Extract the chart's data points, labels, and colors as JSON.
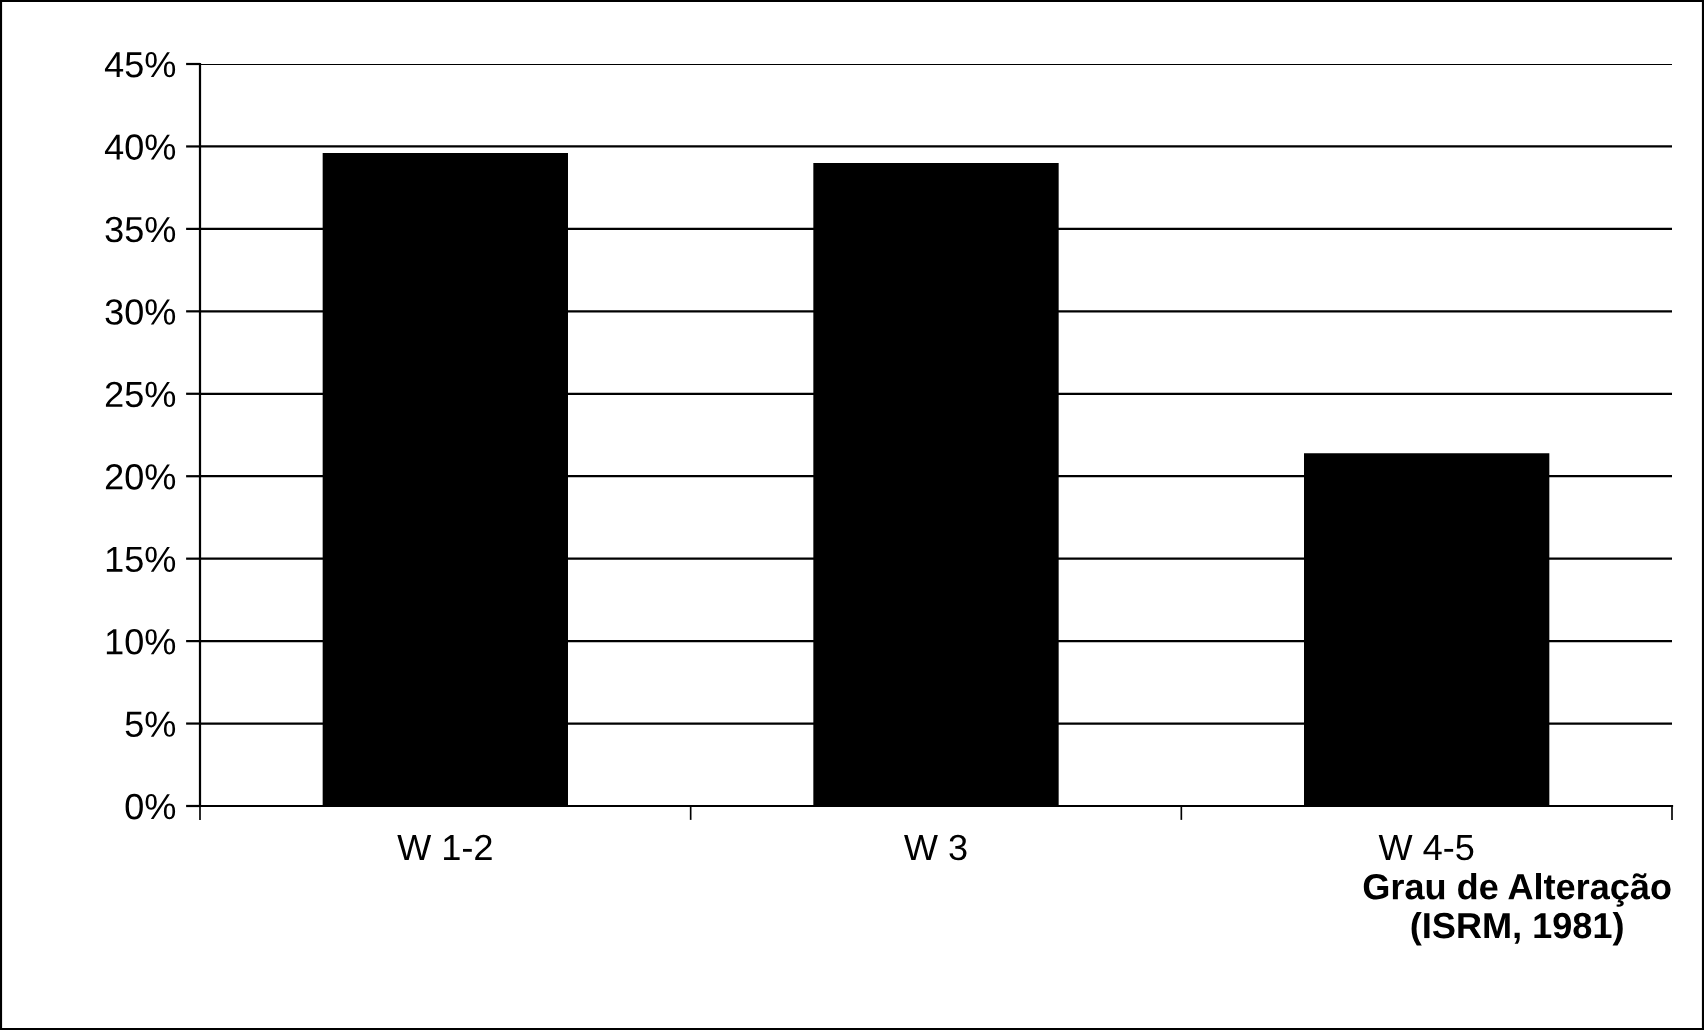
{
  "chart_data": {
    "type": "bar",
    "categories": [
      "W 1-2",
      "W 3",
      "W 4-5"
    ],
    "values": [
      39.6,
      39.0,
      21.4
    ],
    "color": "#000000",
    "xlabel": "Grau de Alteração\n(ISRM, 1981)",
    "ylim": [
      0,
      45
    ],
    "yticks": [
      {
        "value": 0,
        "label": "0%"
      },
      {
        "value": 5,
        "label": "5%"
      },
      {
        "value": 10,
        "label": "10%"
      },
      {
        "value": 15,
        "label": "15%"
      },
      {
        "value": 20,
        "label": "20%"
      },
      {
        "value": 25,
        "label": "25%"
      },
      {
        "value": 30,
        "label": "30%"
      },
      {
        "value": 35,
        "label": "35%"
      },
      {
        "value": 40,
        "label": "40%"
      },
      {
        "value": 45,
        "label": "45%"
      }
    ],
    "grid": "y",
    "legend": false
  }
}
